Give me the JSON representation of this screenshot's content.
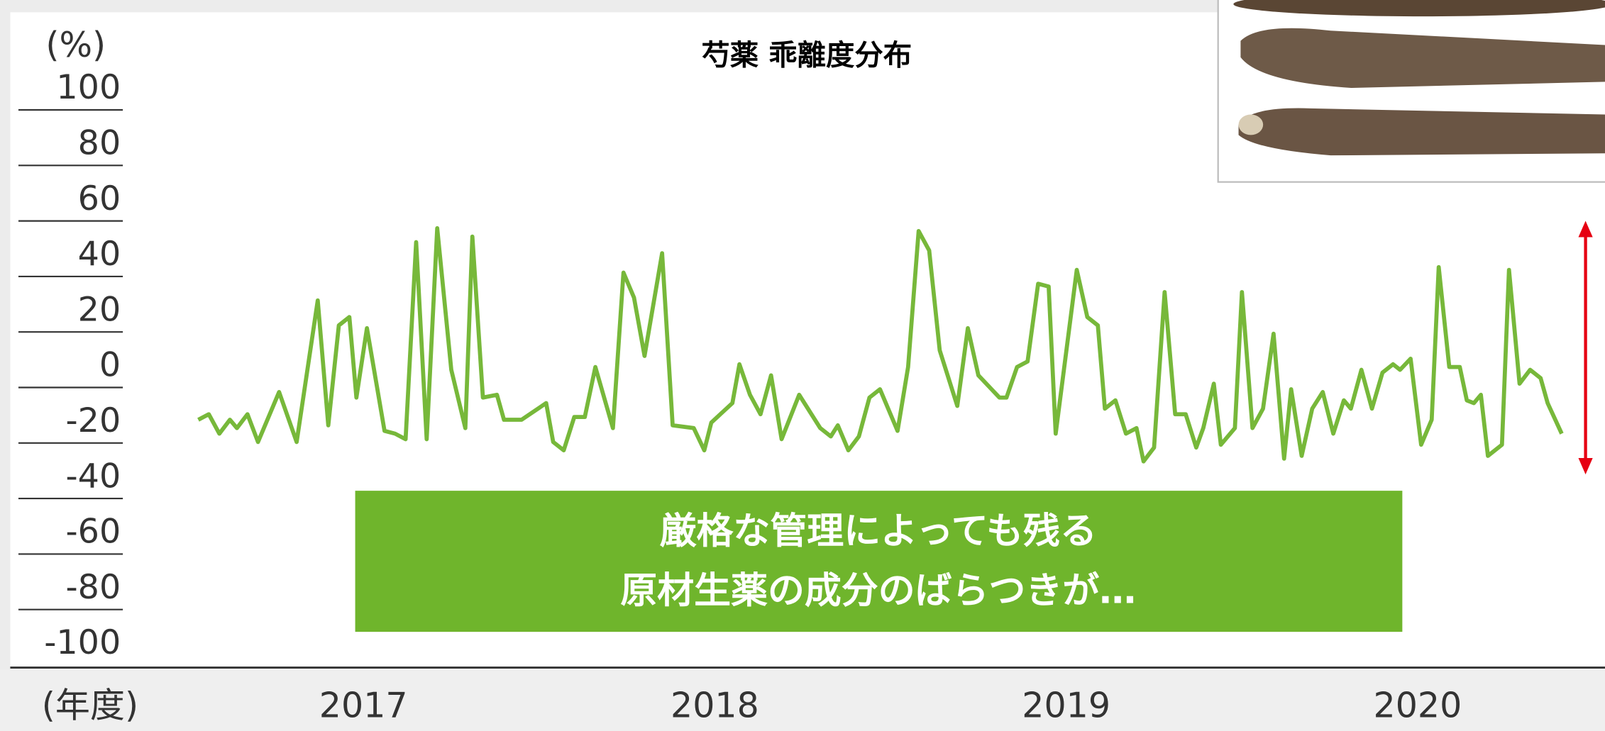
{
  "chart_data": {
    "type": "line",
    "title": "芍薬 乖離度分布",
    "y_label": "(%)",
    "x_label": "(年度)",
    "annotation": [
      "厳格な管理によっても残る",
      "原材生薬の成分のばらつきが…"
    ],
    "color": "#77b83a",
    "x": [
      2016.53,
      2016.56,
      2016.59,
      2016.62,
      2016.64,
      2016.67,
      2016.7,
      2016.76,
      2016.81,
      2016.87,
      2016.9,
      2016.93,
      2016.96,
      2016.98,
      2017.01,
      2017.06,
      2017.09,
      2017.12,
      2017.15,
      2017.18,
      2017.21,
      2017.25,
      2017.29,
      2017.31,
      2017.34,
      2017.38,
      2017.4,
      2017.45,
      2017.52,
      2017.54,
      2017.57,
      2017.6,
      2017.63,
      2017.66,
      2017.71,
      2017.74,
      2017.77,
      2017.8,
      2017.85,
      2017.88,
      2017.94,
      2017.97,
      2017.99,
      2018.05,
      2018.07,
      2018.1,
      2018.13,
      2018.16,
      2018.19,
      2018.24,
      2018.3,
      2018.33,
      2018.35,
      2018.38,
      2018.41,
      2018.44,
      2018.47,
      2018.52,
      2018.55,
      2018.58,
      2018.61,
      2018.64,
      2018.69,
      2018.72,
      2018.75,
      2018.81,
      2018.83,
      2018.86,
      2018.89,
      2018.92,
      2018.95,
      2018.97,
      2019.03,
      2019.06,
      2019.09,
      2019.11,
      2019.14,
      2019.17,
      2019.2,
      2019.22,
      2019.25,
      2019.28,
      2019.31,
      2019.34,
      2019.37,
      2019.39,
      2019.42,
      2019.44,
      2019.48,
      2019.5,
      2019.53,
      2019.56,
      2019.59,
      2019.62,
      2019.64,
      2019.67,
      2019.7,
      2019.73,
      2019.76,
      2019.79,
      2019.81,
      2019.84,
      2019.87,
      2019.9,
      2019.93,
      2019.95,
      2019.98,
      2020.01,
      2020.04,
      2020.06,
      2020.09,
      2020.12,
      2020.14,
      2020.16,
      2020.18,
      2020.2,
      2020.24,
      2020.26,
      2020.29,
      2020.32,
      2020.35,
      2020.37,
      2020.41
    ],
    "values": [
      -19,
      -17,
      -24,
      -19,
      -22,
      -17,
      -27,
      -9,
      -27,
      24,
      -21,
      15,
      18,
      -11,
      14,
      -23,
      -24,
      -26,
      45,
      -26,
      50,
      -1,
      -22,
      47,
      -11,
      -10,
      -19,
      -19,
      -13,
      -27,
      -30,
      -18,
      -18,
      0,
      -22,
      34,
      25,
      4,
      41,
      -21,
      -22,
      -30,
      -20,
      -13,
      1,
      -10,
      -17,
      -3,
      -26,
      -10,
      -22,
      -25,
      -21,
      -30,
      -25,
      -11,
      -8,
      -23,
      0,
      49,
      42,
      6,
      -14,
      14,
      -3,
      -11,
      -11,
      0,
      2,
      30,
      29,
      -24,
      35,
      18,
      15,
      -15,
      -12,
      -24,
      -22,
      -34,
      -29,
      27,
      -17,
      -17,
      -29,
      -22,
      -6,
      -28,
      -22,
      27,
      -22,
      -15,
      12,
      -33,
      -8,
      -32,
      -15,
      -9,
      -24,
      -12,
      -15,
      -1,
      -15,
      -2,
      1,
      -1,
      3,
      -28,
      -19,
      36,
      0,
      0,
      -12,
      -13,
      -10,
      -32,
      -28,
      35,
      -6,
      -1,
      -4,
      -13,
      -24
    ],
    "xlim": [
      2016.5,
      2020.5
    ],
    "xticks": [
      2017,
      2018,
      2019,
      2020
    ],
    "ylim": [
      -100,
      100
    ],
    "yticks": [
      -100,
      -80,
      -60,
      -40,
      -20,
      0,
      20,
      40,
      60,
      80,
      100
    ],
    "grid": true
  }
}
